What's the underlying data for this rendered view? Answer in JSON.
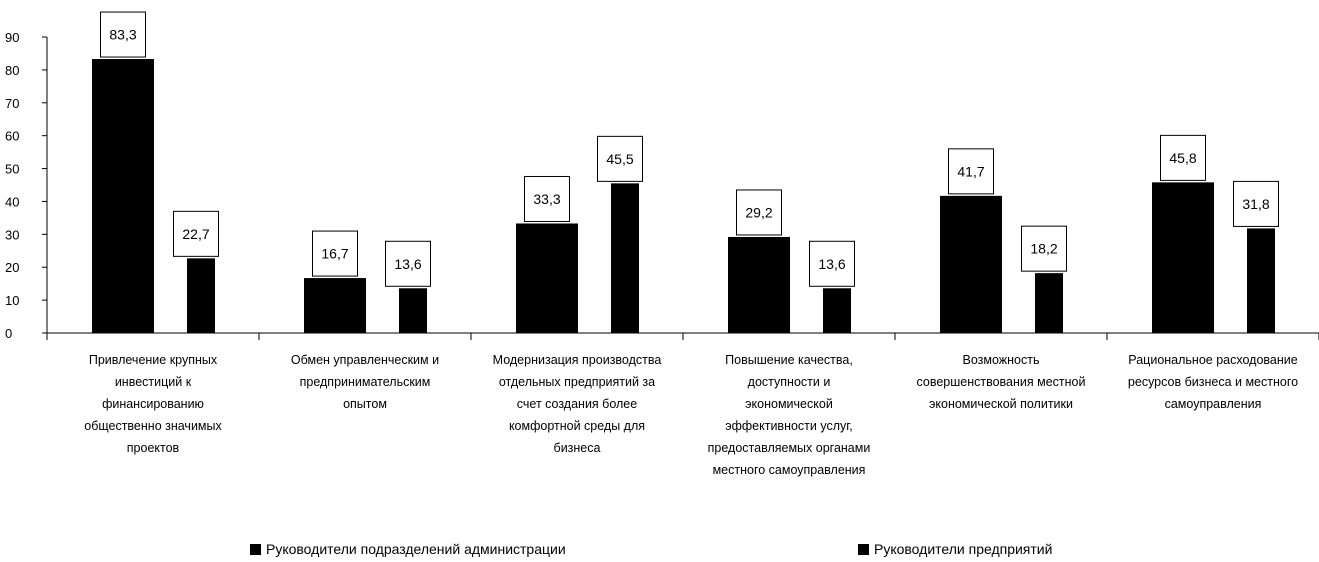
{
  "chart_data": {
    "type": "bar",
    "ylim": [
      0,
      90
    ],
    "yticks": [
      0,
      10,
      20,
      30,
      40,
      50,
      60,
      70,
      80,
      90
    ],
    "categories": [
      "Привлечение крупных инвестиций к финансированию общественно значимых проектов",
      "Обмен управленческим и предпринимательским опытом",
      "Модернизация производства отдельных предприятий за счет создания более комфортной среды для бизнеса",
      "Повышение качества, доступности и экономической эффективности услуг, предоставляемых органами местного самоуправления",
      "Возможность совершенствования местной экономической политики",
      "Рациональное расходование ресурсов бизнеса и местного самоуправления"
    ],
    "category_lines": [
      [
        "Привлечение крупных",
        "инвестиций к",
        "финансированию",
        "общественно значимых",
        "проектов"
      ],
      [
        "Обмен управленческим и",
        "предпринимательским",
        "опытом"
      ],
      [
        "Модернизация производства",
        "отдельных предприятий за",
        "счет создания более",
        "комфортной среды для",
        "бизнеса"
      ],
      [
        "Повышение качества,",
        "доступности и",
        "экономической",
        "эффективности услуг,",
        "предоставляемых органами",
        "местного самоуправления"
      ],
      [
        "Возможность",
        "совершенствования местной",
        "экономической политики"
      ],
      [
        "Рациональное расходование",
        "ресурсов бизнеса и местного",
        "самоуправления"
      ]
    ],
    "series": [
      {
        "name": "Руководители подразделений администрации",
        "values": [
          83.3,
          16.7,
          33.3,
          29.2,
          41.7,
          45.8
        ],
        "labels": [
          "83,3",
          "16,7",
          "33,3",
          "29,2",
          "41,7",
          "45,8"
        ]
      },
      {
        "name": "Руководители предприятий",
        "values": [
          22.7,
          13.6,
          45.5,
          13.6,
          18.2,
          31.8
        ],
        "labels": [
          "22,7",
          "13,6",
          "45,5",
          "13,6",
          "18,2",
          "31,8"
        ]
      }
    ],
    "colors": [
      "#000000",
      "#000000"
    ],
    "legend_position": "bottom",
    "grid": false
  }
}
